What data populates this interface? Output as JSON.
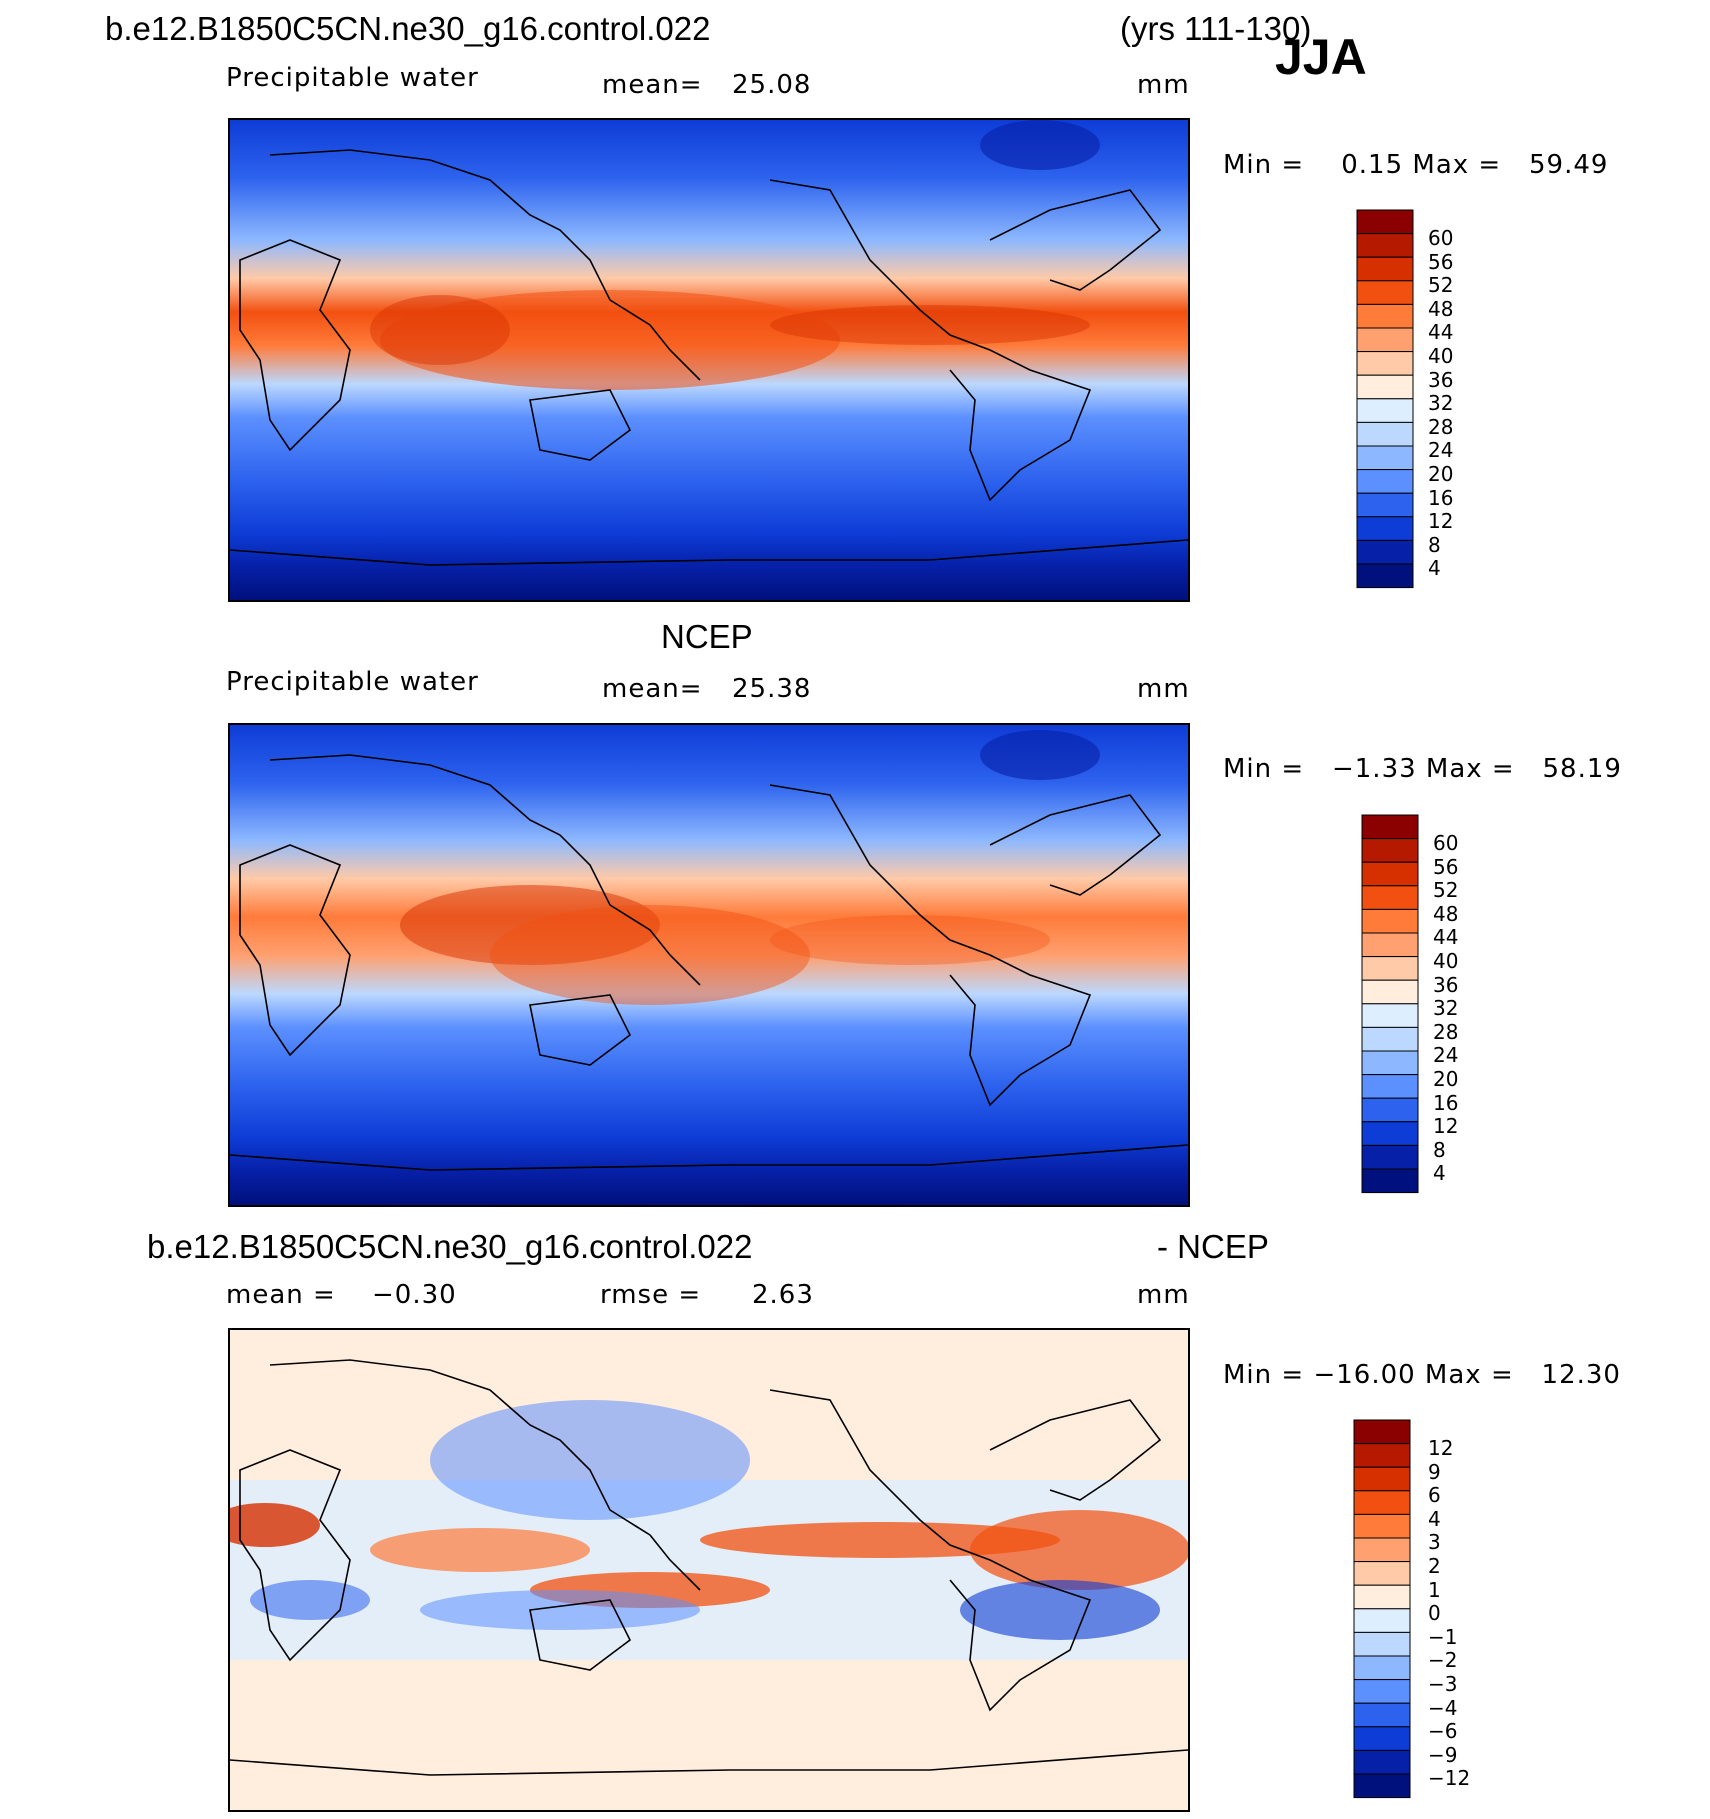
{
  "header": {
    "case_name": "b.e12.B1850C5CN.ne30_g16.control.022",
    "years": "(yrs 111-130)",
    "season": "JJA"
  },
  "panel1": {
    "variable": "Precipitable water",
    "mean_label": "mean=",
    "mean_value": "25.08",
    "units": "mm",
    "minmax": "Min =    0.15 Max =   59.49"
  },
  "panel2": {
    "title": "NCEP",
    "variable": "Precipitable water",
    "mean_label": "mean=",
    "mean_value": "25.38",
    "units": "mm",
    "minmax": "Min =   −1.33 Max =   58.19"
  },
  "panel3": {
    "title_left": "b.e12.B1850C5CN.ne30_g16.control.022",
    "title_right": "- NCEP",
    "mean_label": "mean =",
    "mean_value": "−0.30",
    "rmse_label": "rmse =",
    "rmse_value": "2.63",
    "units": "mm",
    "minmax": "Min = −16.00 Max =   12.30"
  },
  "colorbars": {
    "field_levels": [
      "60",
      "56",
      "52",
      "48",
      "44",
      "40",
      "36",
      "32",
      "28",
      "24",
      "20",
      "16",
      "12",
      "8",
      "4"
    ],
    "field_colors": [
      "#8b0000",
      "#b51a00",
      "#d63000",
      "#f25010",
      "#ff7b3a",
      "#ffa070",
      "#ffcaa8",
      "#ffeedd",
      "#dceeff",
      "#bcd8ff",
      "#8db8ff",
      "#5c90ff",
      "#2d62ee",
      "#0e3cd6",
      "#0620a8",
      "#00107c"
    ],
    "diff_levels": [
      "12",
      "9",
      "6",
      "4",
      "3",
      "2",
      "1",
      "0",
      "−1",
      "−2",
      "−3",
      "−4",
      "−6",
      "−9",
      "−12"
    ],
    "diff_colors": [
      "#8b0000",
      "#b51a00",
      "#d63000",
      "#f25010",
      "#ff7b3a",
      "#ffa070",
      "#ffcaa8",
      "#ffeedd",
      "#dceeff",
      "#bcd8ff",
      "#8db8ff",
      "#5c90ff",
      "#2d62ee",
      "#0e3cd6",
      "#0620a8",
      "#00107c"
    ]
  }
}
